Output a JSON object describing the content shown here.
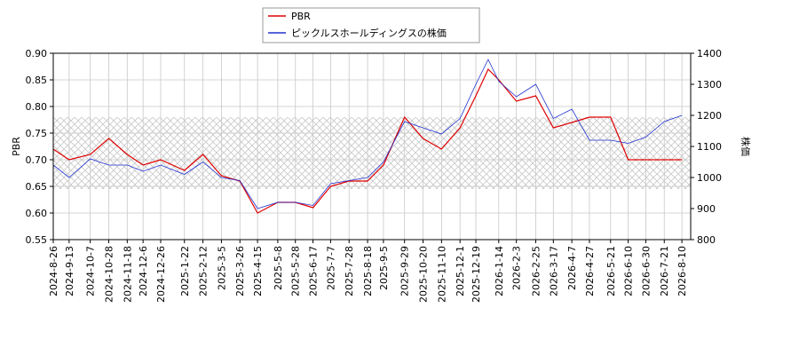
{
  "chart_data": {
    "type": "line",
    "x": [
      "2024-8-26",
      "2024-9-13",
      "2024-10-7",
      "2024-10-28",
      "2024-11-18",
      "2024-12-6",
      "2024-12-26",
      "2025-1-22",
      "2025-2-12",
      "2025-3-5",
      "2025-3-26",
      "2025-4-15",
      "2025-5-8",
      "2025-5-28",
      "2025-6-17",
      "2025-7-7",
      "2025-7-28",
      "2025-8-18",
      "2025-9-5",
      "2025-9-29",
      "2025-10-20",
      "2025-11-10",
      "2025-12-1",
      "2025-12-19",
      "2026-1-2",
      "2026-1-14",
      "2026-2-3",
      "2026-2-25",
      "2026-3-17",
      "2026-4-7",
      "2026-4-27",
      "2026-5-21",
      "2026-6-10",
      "2026-6-30",
      "2026-7-21",
      "2026-8-10"
    ],
    "series": [
      {
        "name": "PBR",
        "color": "#e00000",
        "axis": "y",
        "values": [
          0.72,
          0.7,
          0.71,
          0.74,
          0.71,
          0.69,
          0.7,
          0.68,
          0.71,
          0.67,
          0.66,
          0.6,
          0.62,
          0.62,
          0.61,
          0.65,
          0.66,
          0.66,
          0.69,
          0.78,
          0.74,
          0.72,
          0.76,
          0.82,
          0.87,
          0.85,
          0.81,
          0.82,
          0.76,
          0.77,
          0.78,
          0.78,
          0.7,
          0.7,
          0.7,
          0.7
        ]
      },
      {
        "name": "ピックルスホールディングスの株価",
        "color": "#2030d0",
        "axis": "y2",
        "values": [
          1040,
          1000,
          1060,
          1040,
          1040,
          1020,
          1040,
          1010,
          1050,
          1000,
          990,
          900,
          920,
          920,
          910,
          980,
          990,
          1000,
          1050,
          1180,
          1160,
          1140,
          1190,
          1300,
          1380,
          1310,
          1260,
          1300,
          1190,
          1220,
          1120,
          1120,
          1110,
          1130,
          1180,
          1200
        ]
      }
    ],
    "shaded_range": [
      0.645,
      0.78
    ],
    "ylabel": "PBR",
    "y2label": "株価",
    "xlim": [
      "2024-8-26",
      "2026-8-20"
    ],
    "xticks": [
      "2024-8-26",
      "2024-9-13",
      "2024-10-7",
      "2024-10-28",
      "2024-11-18",
      "2024-12-6",
      "2024-12-26",
      "2025-1-22",
      "2025-2-12",
      "2025-3-5",
      "2025-3-26",
      "2025-4-15",
      "2025-5-8",
      "2025-5-28",
      "2025-6-17",
      "2025-7-7",
      "2025-7-28",
      "2025-8-18",
      "2025-9-5",
      "2025-9-29",
      "2025-10-20",
      "2025-11-10",
      "2025-12-1",
      "2025-12-19",
      "2026-1-14",
      "2026-2-3",
      "2026-2-25",
      "2026-3-17",
      "2026-4-7",
      "2026-4-27",
      "2026-5-21",
      "2026-6-10",
      "2026-6-30",
      "2026-7-21",
      "2026-8-10"
    ],
    "ylim": [
      0.55,
      0.9
    ],
    "yticks": [
      {
        "value": 0.55,
        "label": "0.55"
      },
      {
        "value": 0.6,
        "label": "0.60"
      },
      {
        "value": 0.65,
        "label": "0.65"
      },
      {
        "value": 0.7,
        "label": "0.70"
      },
      {
        "value": 0.75,
        "label": "0.75"
      },
      {
        "value": 0.8,
        "label": "0.80"
      },
      {
        "value": 0.85,
        "label": "0.85"
      },
      {
        "value": 0.9,
        "label": "0.90"
      }
    ],
    "y2lim": [
      800,
      1400
    ],
    "y2ticks": [
      800,
      900,
      1000,
      1100,
      1200,
      1300,
      1400
    ],
    "grid": true
  }
}
